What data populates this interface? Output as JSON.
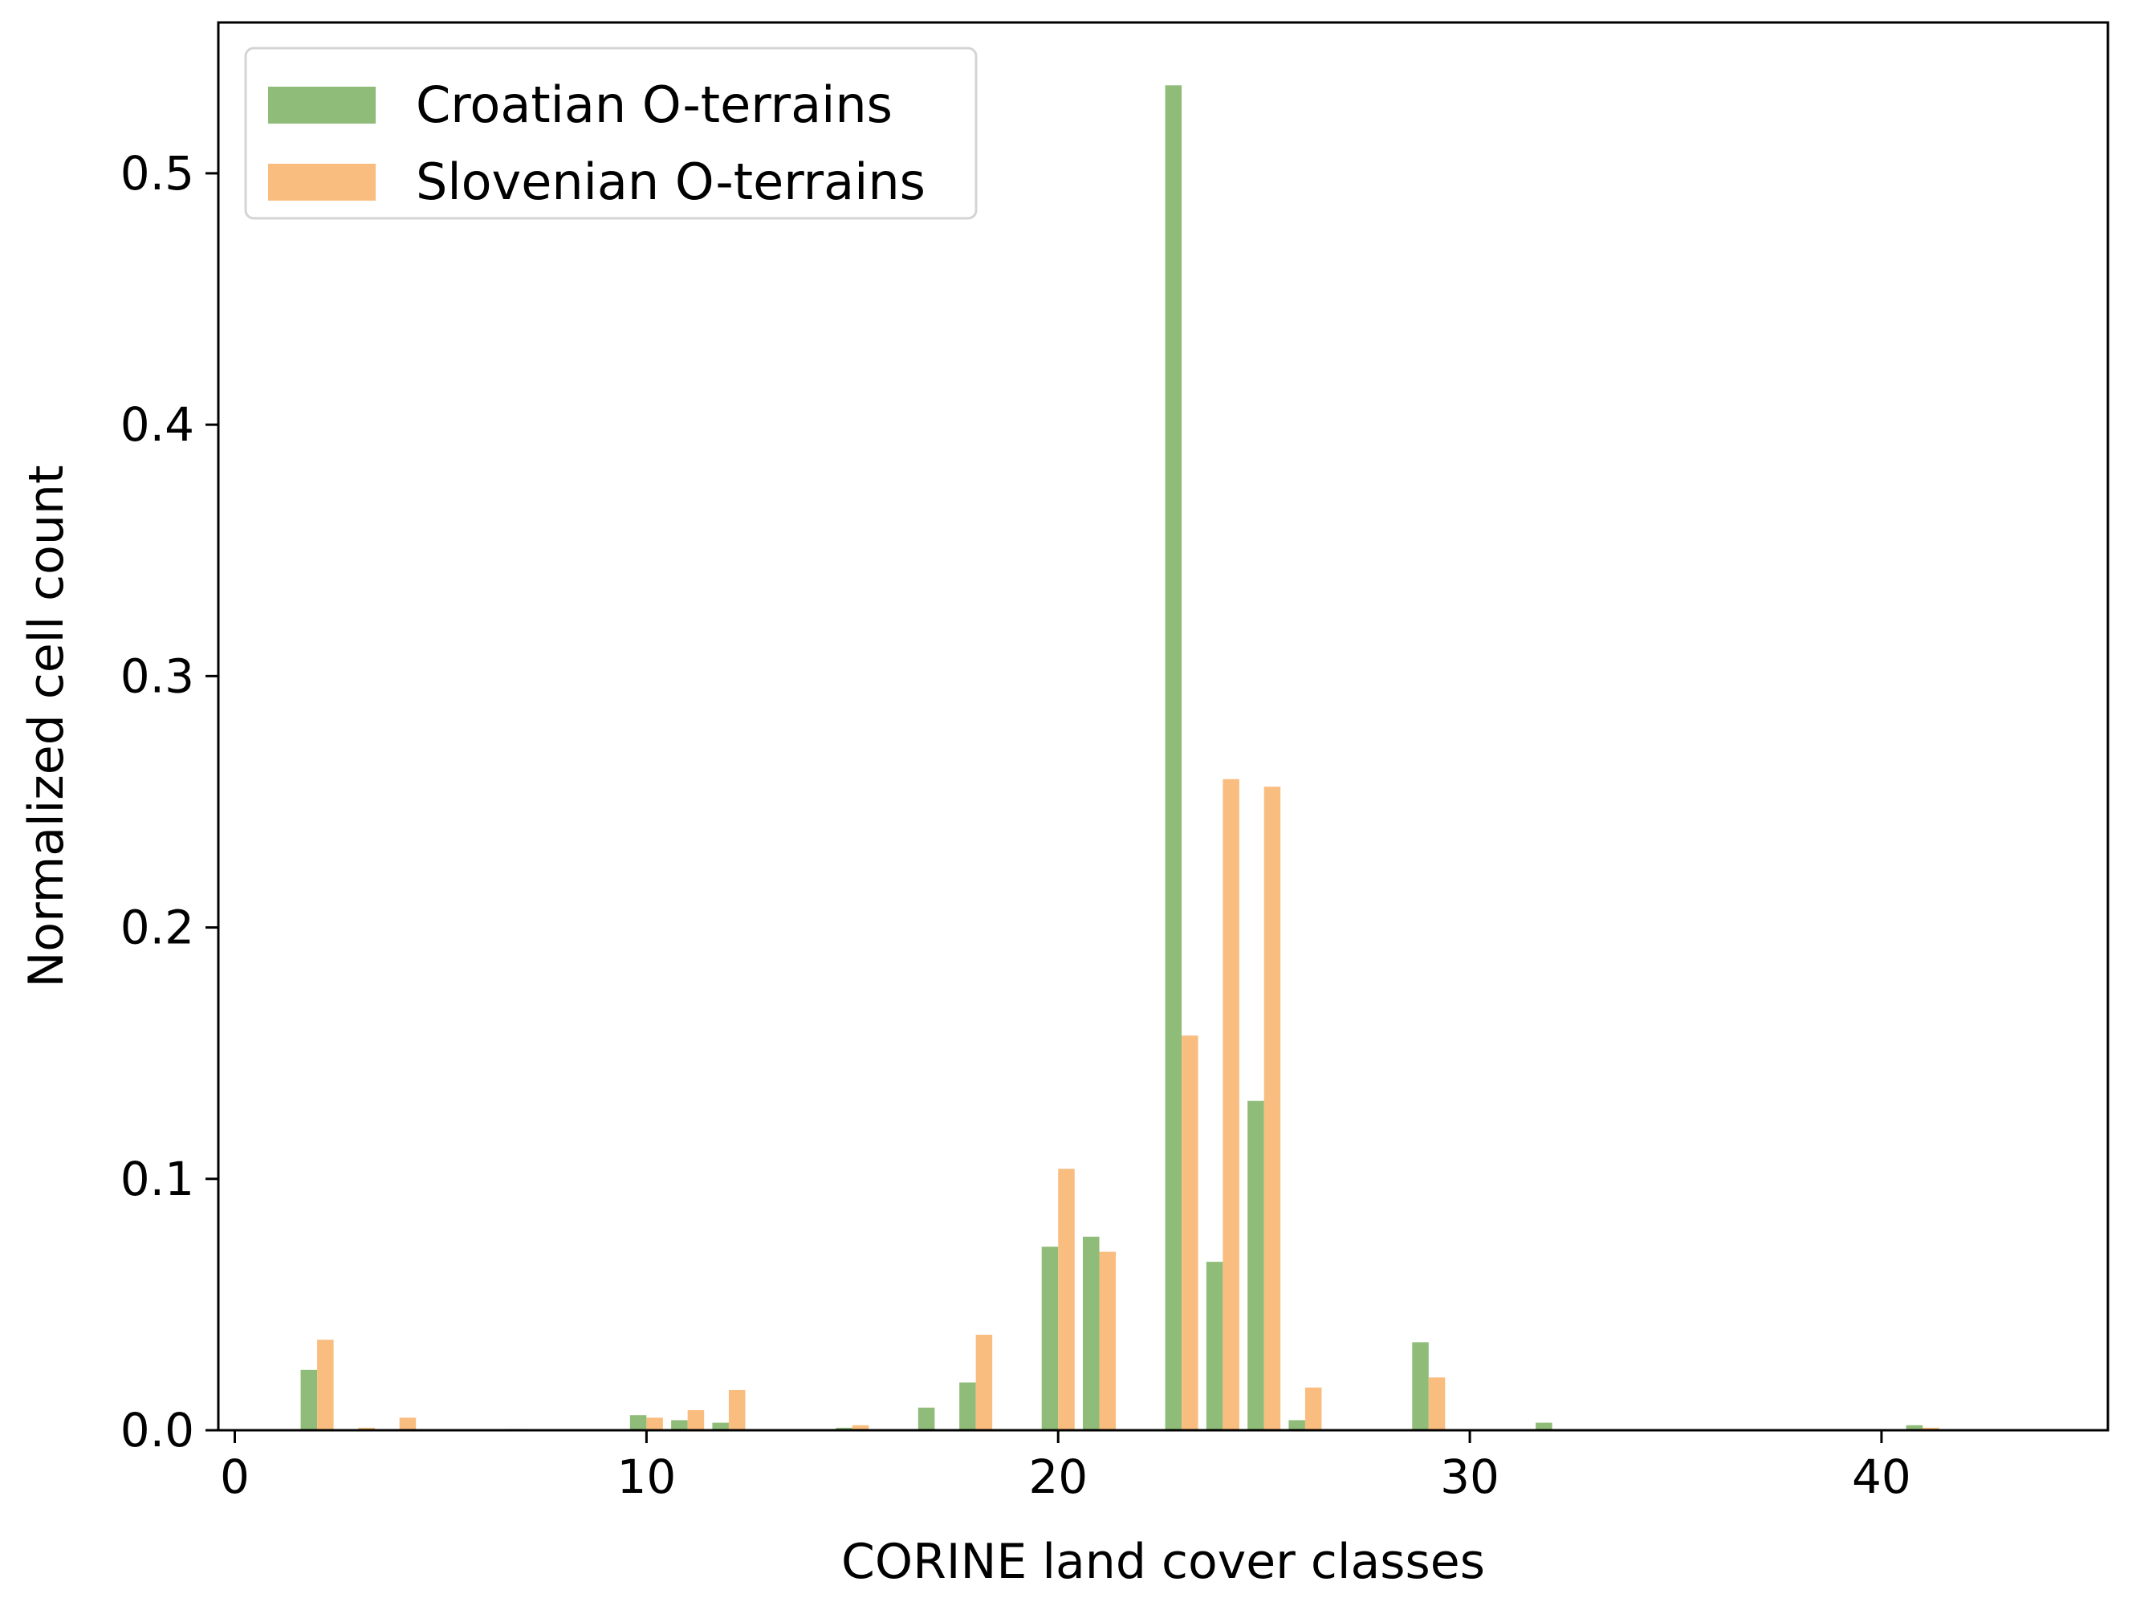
{
  "chart_data": {
    "type": "bar",
    "xlabel": "CORINE land cover classes",
    "ylabel": "Normalized cell count",
    "xlim": [
      -0.4,
      45.5
    ],
    "ylim": [
      0,
      0.56
    ],
    "x_ticks": [
      0,
      10,
      20,
      30,
      40
    ],
    "y_ticks": [
      0.0,
      0.1,
      0.2,
      0.3,
      0.4,
      0.5
    ],
    "x_tick_labels": [
      "0",
      "10",
      "20",
      "30",
      "40"
    ],
    "y_tick_labels": [
      "0.0",
      "0.1",
      "0.2",
      "0.3",
      "0.4",
      "0.5"
    ],
    "grid": false,
    "legend_position": "top-left",
    "categories": [
      2,
      3,
      4,
      7,
      10,
      11,
      12,
      15,
      17,
      18,
      20,
      21,
      23,
      24,
      25,
      26,
      29,
      32,
      41
    ],
    "series": [
      {
        "name": "Croatian O-terrains",
        "color": "#8fbc78",
        "values": [
          0.024,
          0.0,
          0.0,
          0.0005,
          0.006,
          0.004,
          0.003,
          0.001,
          0.009,
          0.019,
          0.073,
          0.077,
          0.535,
          0.067,
          0.131,
          0.004,
          0.035,
          0.003,
          0.002
        ]
      },
      {
        "name": "Slovenian O-terrains",
        "color": "#f9bd80",
        "values": [
          0.036,
          0.001,
          0.005,
          0.0,
          0.005,
          0.008,
          0.016,
          0.002,
          0.0,
          0.038,
          0.104,
          0.071,
          0.157,
          0.259,
          0.256,
          0.017,
          0.021,
          0.0,
          0.001
        ]
      }
    ]
  }
}
